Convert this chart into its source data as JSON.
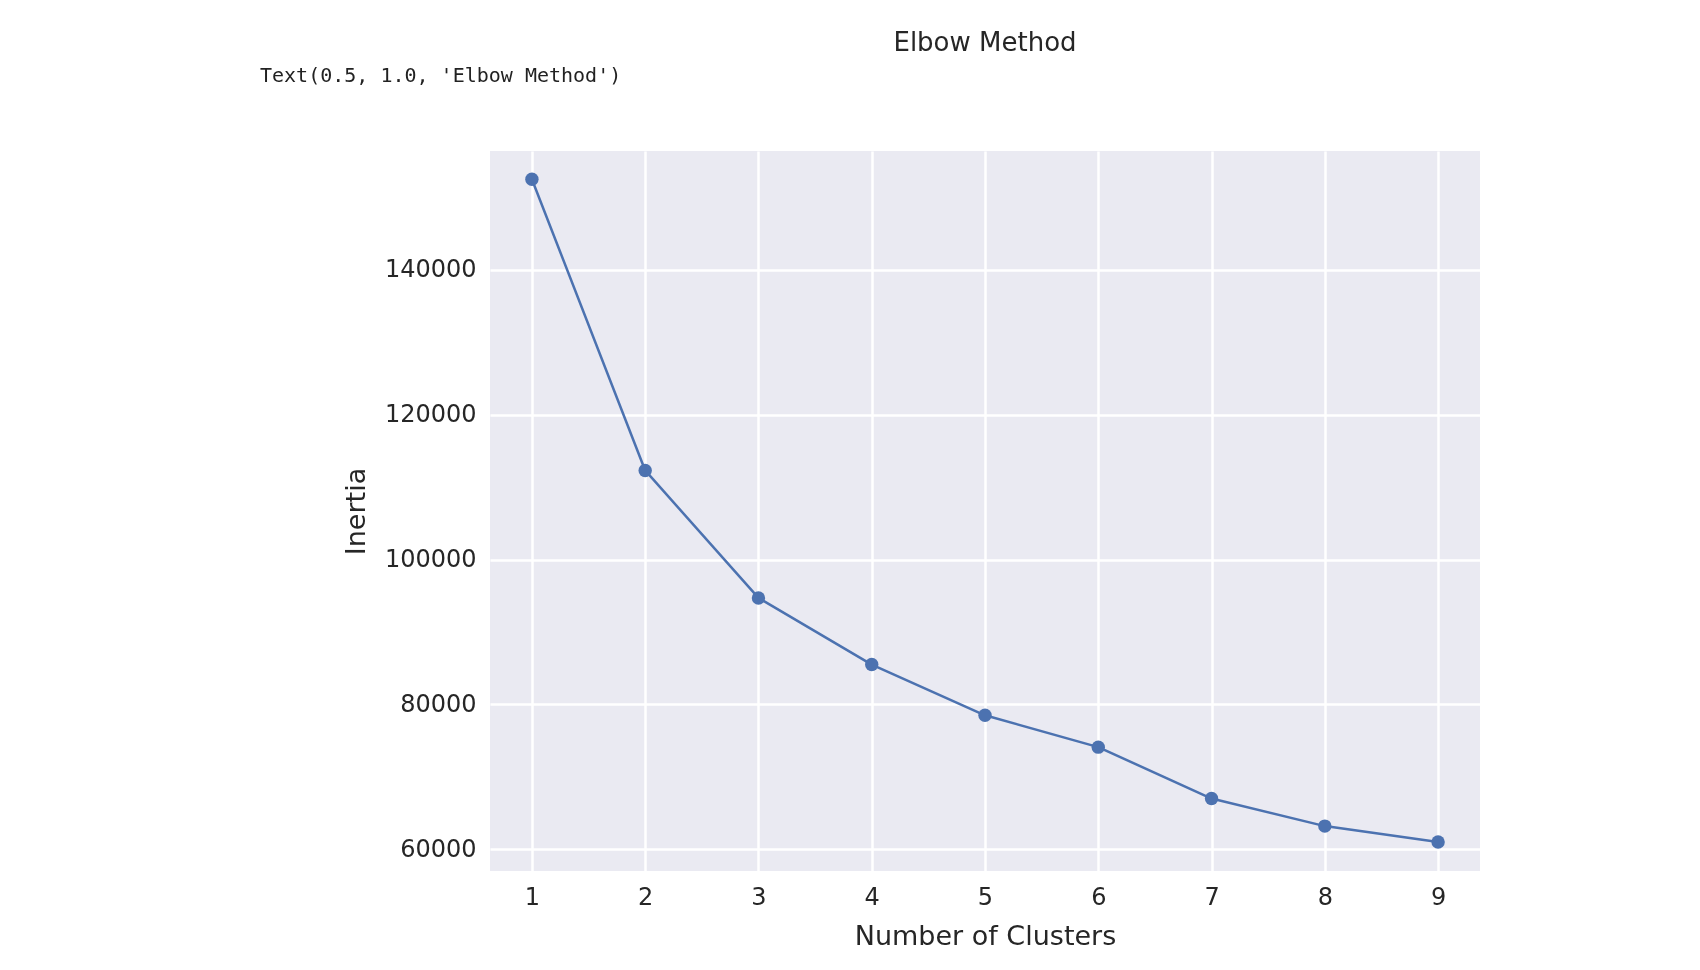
{
  "chart_data": {
    "type": "line",
    "title": "Elbow Method",
    "xlabel": "Number of Clusters",
    "ylabel": "Inertia",
    "annotations": [
      "Text(0.5, 1.0, 'Elbow Method')"
    ],
    "x": [
      1,
      2,
      3,
      4,
      5,
      6,
      7,
      8,
      9
    ],
    "series": [
      {
        "color": "#4c72b0",
        "values": [
          152500,
          112300,
          94700,
          85500,
          78500,
          74100,
          67000,
          63200,
          61000
        ]
      }
    ],
    "xlim": [
      0.63,
      9.37
    ],
    "xticks": [
      1,
      2,
      3,
      4,
      5,
      6,
      7,
      8,
      9
    ],
    "ylim": [
      57000,
      156400
    ],
    "yticks": [
      60000,
      80000,
      100000,
      120000,
      140000
    ],
    "grid": true,
    "marker": "circle",
    "line_style": "solid"
  }
}
